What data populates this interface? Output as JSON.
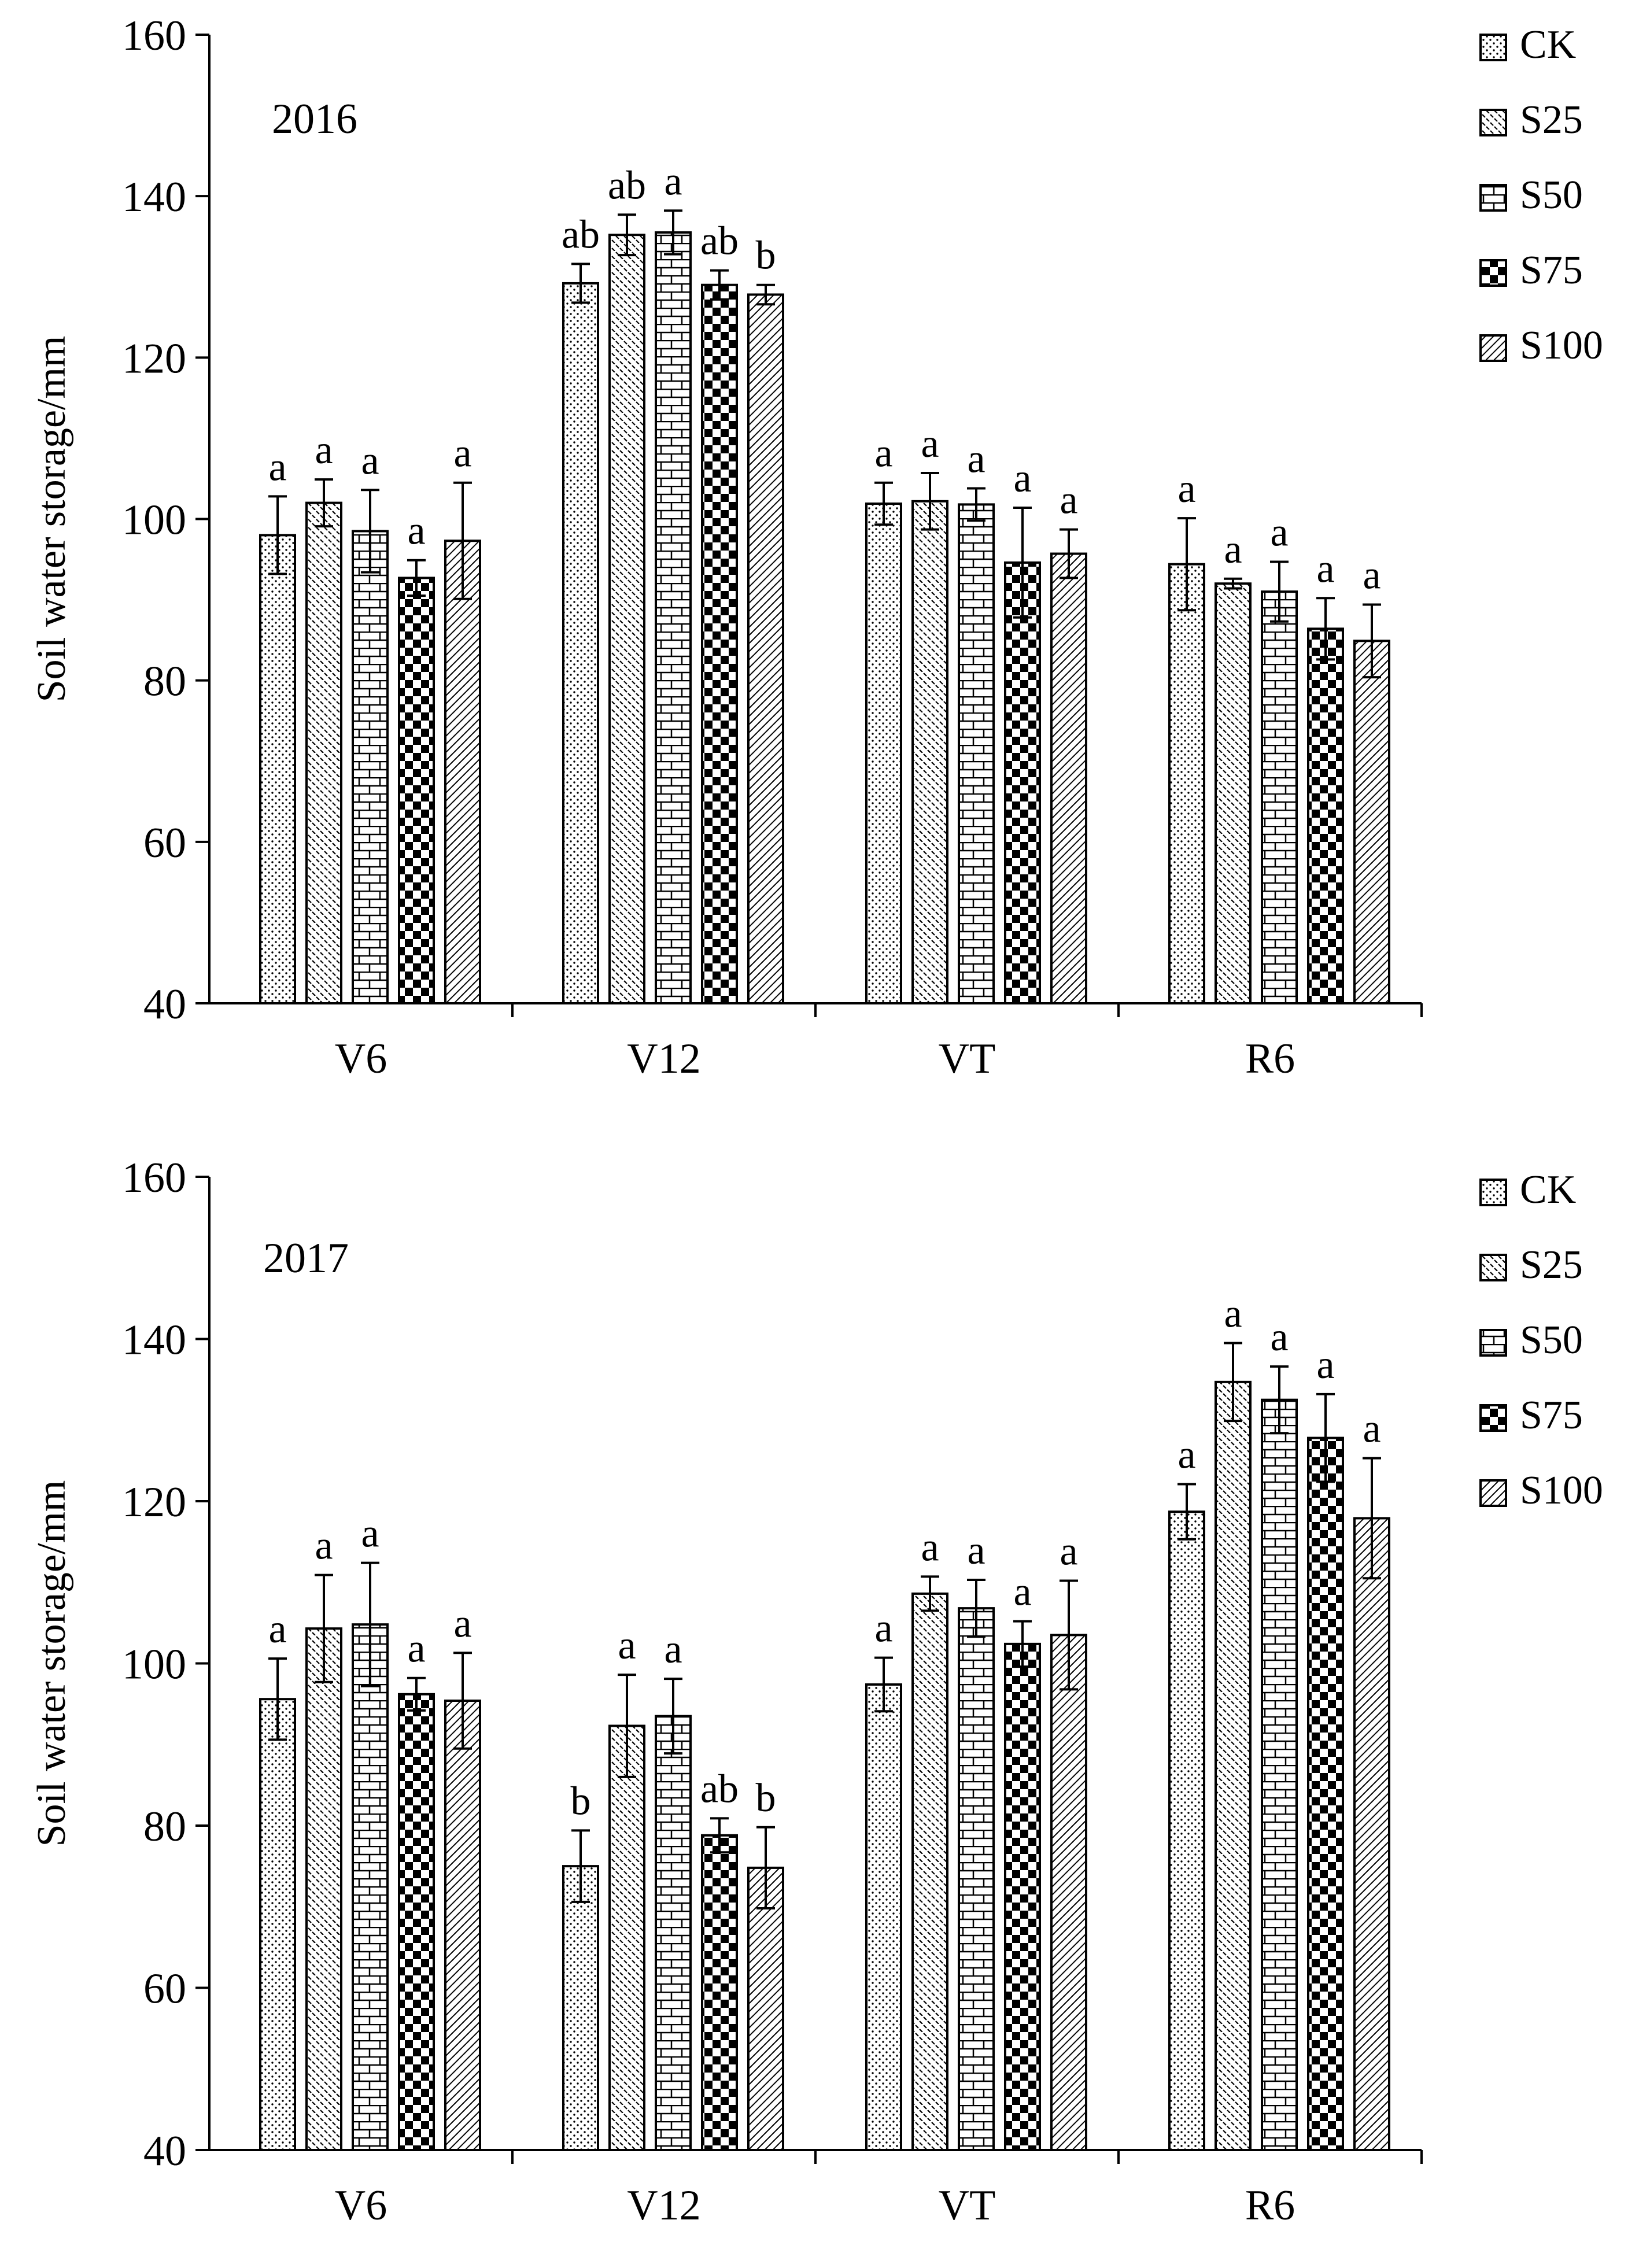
{
  "chart_data": [
    {
      "type": "bar",
      "title": "2016",
      "xlabel": "",
      "ylabel": "Soil water storage/mm",
      "ylim": [
        40,
        160
      ],
      "yticks": [
        40,
        60,
        80,
        100,
        120,
        140,
        160
      ],
      "categories": [
        "V6",
        "V12",
        "VT",
        "R6"
      ],
      "legend": [
        "CK",
        "S25",
        "S50",
        "S75",
        "S100"
      ],
      "legend_position": "top-right",
      "series": [
        {
          "name": "CK",
          "pattern": "dots",
          "values": [
            98,
            129.2,
            101.9,
            94.4
          ],
          "errors": [
            4.8,
            2.4,
            2.6,
            5.7
          ],
          "labels": [
            "a",
            "ab",
            "a",
            "a"
          ]
        },
        {
          "name": "S25",
          "pattern": "diag-dash",
          "values": [
            102,
            135.2,
            102.2,
            92
          ],
          "errors": [
            2.9,
            2.5,
            3.5,
            0.6
          ],
          "labels": [
            "a",
            "ab",
            "a",
            "a"
          ]
        },
        {
          "name": "S50",
          "pattern": "bricks",
          "values": [
            98.5,
            135.5,
            101.8,
            91
          ],
          "errors": [
            5.1,
            2.7,
            2,
            3.7
          ],
          "labels": [
            "a",
            "a",
            "a",
            "a"
          ]
        },
        {
          "name": "S75",
          "pattern": "checker",
          "values": [
            92.7,
            129,
            94.6,
            86.4
          ],
          "errors": [
            2.2,
            1.8,
            6.8,
            3.8
          ],
          "labels": [
            "a",
            "ab",
            "a",
            "a"
          ]
        },
        {
          "name": "S100",
          "pattern": "diag-lines",
          "values": [
            97.3,
            127.8,
            95.7,
            84.9
          ],
          "errors": [
            7.2,
            1.2,
            3,
            4.5
          ],
          "labels": [
            "a",
            "b",
            "a",
            "a"
          ]
        }
      ]
    },
    {
      "type": "bar",
      "title": "2017",
      "xlabel": "",
      "ylabel": "Soil water storage/mm",
      "ylim": [
        40,
        160
      ],
      "yticks": [
        40,
        60,
        80,
        100,
        120,
        140,
        160
      ],
      "categories": [
        "V6",
        "V12",
        "VT",
        "R6"
      ],
      "legend": [
        "CK",
        "S25",
        "S50",
        "S75",
        "S100"
      ],
      "legend_position": "top-right",
      "series": [
        {
          "name": "CK",
          "pattern": "dots",
          "values": [
            95.6,
            75,
            97.4,
            118.7
          ],
          "errors": [
            5,
            4.4,
            3.3,
            3.4
          ],
          "labels": [
            "a",
            "b",
            "a",
            "a"
          ]
        },
        {
          "name": "S25",
          "pattern": "diag-dash",
          "values": [
            104.3,
            92.3,
            108.6,
            134.7
          ],
          "errors": [
            6.6,
            6.3,
            2.1,
            4.8
          ],
          "labels": [
            "a",
            "a",
            "a",
            "a"
          ]
        },
        {
          "name": "S50",
          "pattern": "bricks",
          "values": [
            104.8,
            93.5,
            106.8,
            132.5
          ],
          "errors": [
            7.6,
            4.6,
            3.5,
            4.1
          ],
          "labels": [
            "a",
            "a",
            "a",
            "a"
          ]
        },
        {
          "name": "S75",
          "pattern": "checker",
          "values": [
            96.2,
            78.8,
            102.4,
            127.8
          ],
          "errors": [
            2,
            2.1,
            2.8,
            5.4
          ],
          "labels": [
            "a",
            "ab",
            "a",
            "a"
          ]
        },
        {
          "name": "S100",
          "pattern": "diag-lines",
          "values": [
            95.4,
            74.8,
            103.5,
            117.9
          ],
          "errors": [
            5.9,
            5,
            6.7,
            7.4
          ],
          "labels": [
            "a",
            "b",
            "a",
            "a"
          ]
        }
      ]
    }
  ]
}
